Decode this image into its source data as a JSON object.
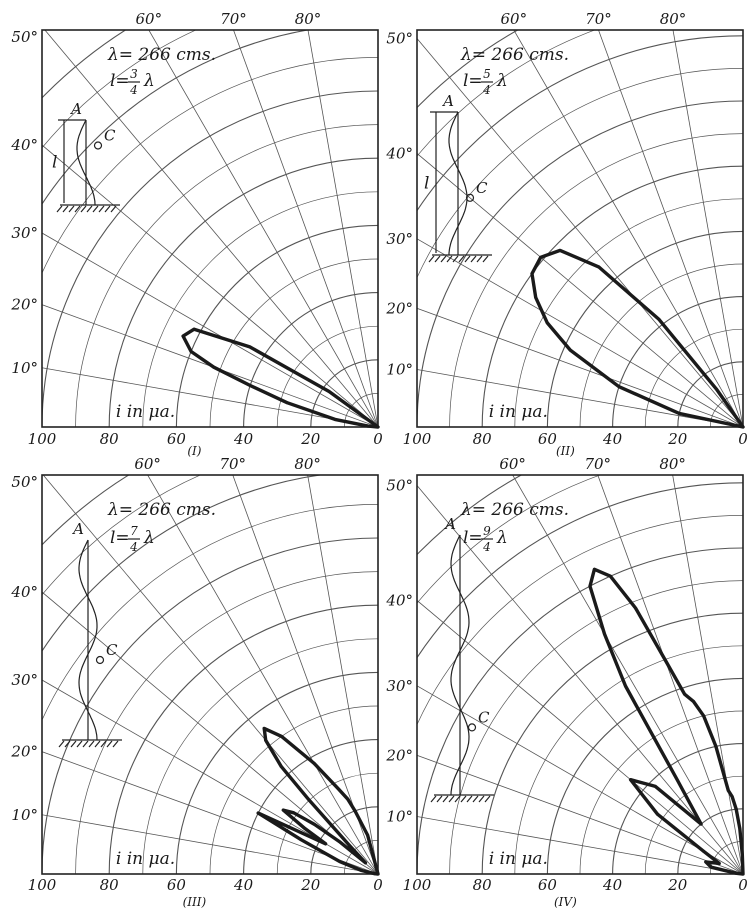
{
  "chart_data": [
    {
      "type": "polar",
      "caption": "(I)",
      "annotation_wavelength": "λ= 266 cms.",
      "annotation_length": "l= 3/4 λ",
      "length_fraction": {
        "num": "3",
        "den": "4"
      },
      "half_waves": 1.5,
      "radial_label": "i in μa.",
      "radial_ticks": [
        "100",
        "80",
        "60",
        "40",
        "20",
        "0"
      ],
      "angle_ticks": [
        "10°",
        "20°",
        "30°",
        "40°",
        "50°",
        "60°",
        "70°",
        "80°"
      ],
      "rlim": [
        0,
        100
      ],
      "series": [
        {
          "angles_deg": [
            0,
            5,
            10,
            15,
            18,
            20,
            22,
            25,
            28,
            32,
            36
          ],
          "values": [
            0,
            3,
            13,
            28,
            40,
            52,
            60,
            64,
            62,
            45,
            18
          ]
        }
      ],
      "antenna_labels": {
        "top": "A",
        "point": "C",
        "length": "l"
      }
    },
    {
      "type": "polar",
      "caption": "(II)",
      "annotation_wavelength": "λ= 266 cms.",
      "annotation_length": "l= 5/4 λ",
      "length_fraction": {
        "num": "5",
        "den": "4"
      },
      "half_waves": 2.5,
      "radial_label": "i in μa.",
      "radial_ticks": [
        "100",
        "80",
        "60",
        "40",
        "20",
        "0"
      ],
      "angle_ticks": [
        "10°",
        "20°",
        "30°",
        "40°",
        "50°",
        "60°",
        "70°",
        "80°"
      ],
      "rlim": [
        0,
        100
      ],
      "series": [
        {
          "angles_deg": [
            0,
            12,
            18,
            24,
            28,
            32,
            36,
            40,
            44,
            48,
            52,
            55
          ],
          "values": [
            0,
            20,
            40,
            58,
            68,
            75,
            80,
            81,
            78,
            66,
            42,
            14
          ]
        }
      ],
      "antenna_labels": {
        "top": "A",
        "point": "C",
        "length": "l"
      }
    },
    {
      "type": "polar",
      "caption": "(III)",
      "annotation_wavelength": "λ= 266 cms.",
      "annotation_length": "l= 7/4 λ",
      "length_fraction": {
        "num": "7",
        "den": "4"
      },
      "half_waves": 3.5,
      "radial_label": "i in μa.",
      "radial_ticks": [
        "100",
        "80",
        "60",
        "40",
        "20",
        "0"
      ],
      "angle_ticks": [
        "10°",
        "20°",
        "30°",
        "40°",
        "50°",
        "60°",
        "70°",
        "80°"
      ],
      "rlim": [
        0,
        100
      ],
      "series": [
        {
          "angles_deg": [
            0,
            5,
            12,
            18,
            24,
            27,
            30,
            32,
            34,
            36,
            38,
            40,
            42,
            45,
            47,
            48,
            50,
            52,
            55,
            60,
            65,
            68,
            70,
            75,
            80
          ],
          "values": [
            0,
            1,
            5,
            12,
            25,
            40,
            18,
            26,
            34,
            31,
            24,
            15,
            5,
            12,
            30,
            43,
            52,
            55,
            50,
            38,
            28,
            24,
            20,
            12,
            0
          ]
        }
      ],
      "antenna_labels": {
        "top": "A",
        "point": "C",
        "length": ""
      }
    },
    {
      "type": "polar",
      "caption": "(IV)",
      "annotation_wavelength": "λ= 266 cms.",
      "annotation_length": "l= 9/4 λ",
      "length_fraction": {
        "num": "9",
        "den": "4"
      },
      "half_waves": 4.5,
      "radial_label": "i in μa.",
      "radial_ticks": [
        "100",
        "80",
        "60",
        "40",
        "20",
        "0"
      ],
      "angle_ticks": [
        "10°",
        "20°",
        "30°",
        "40°",
        "50°",
        "60°",
        "70°",
        "80°"
      ],
      "rlim": [
        0,
        100
      ],
      "series": [
        {
          "angles_deg": [
            0,
            6,
            12,
            18,
            24,
            30,
            35,
            40,
            45,
            50,
            55,
            58,
            60,
            62,
            64,
            66,
            68,
            70,
            72,
            74,
            76,
            78,
            80,
            82,
            84,
            86,
            88,
            90
          ],
          "values": [
            0,
            2,
            10,
            12,
            8,
            14,
            32,
            45,
            38,
            20,
            35,
            68,
            85,
            100,
            104,
            100,
            88,
            70,
            58,
            55,
            50,
            40,
            26,
            24,
            20,
            14,
            6,
            0
          ]
        }
      ],
      "antenna_labels": {
        "top": "A",
        "point": "C",
        "length": ""
      }
    }
  ]
}
